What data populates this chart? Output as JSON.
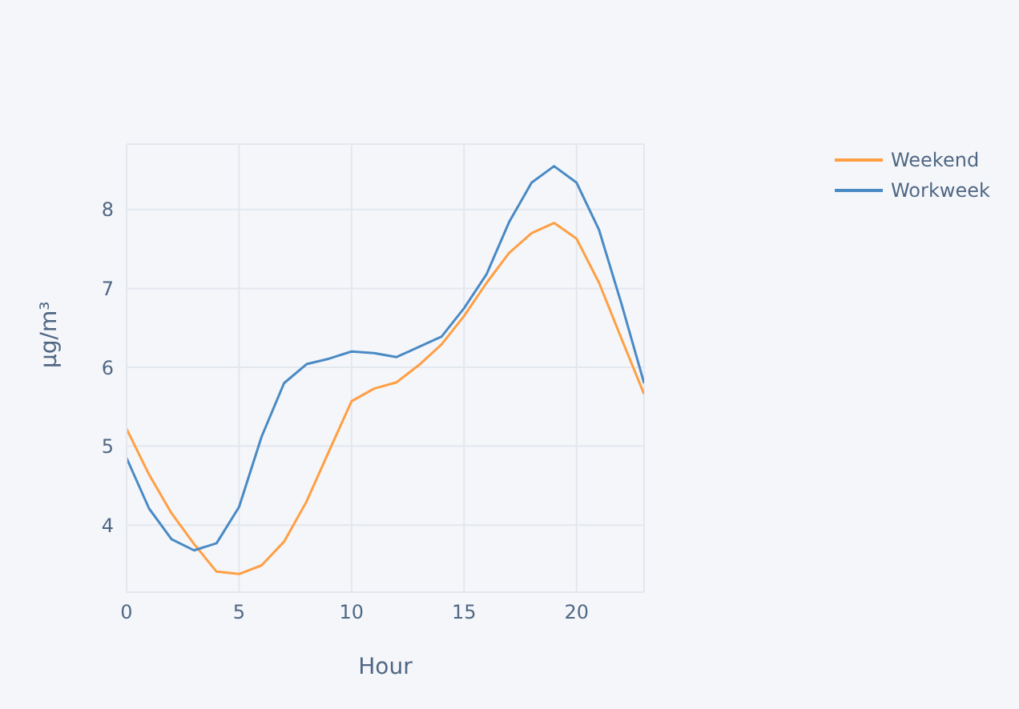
{
  "chart_data": {
    "type": "line",
    "xlabel": "Hour",
    "ylabel": "μg/m³",
    "x": [
      0,
      1,
      2,
      3,
      4,
      5,
      6,
      7,
      8,
      9,
      10,
      11,
      12,
      13,
      14,
      15,
      16,
      17,
      18,
      19,
      20,
      21,
      22,
      23
    ],
    "series": [
      {
        "name": "Weekend",
        "color": "#ff9f43",
        "values": [
          5.22,
          4.64,
          4.15,
          3.76,
          3.41,
          3.38,
          3.49,
          3.79,
          4.3,
          4.94,
          5.57,
          5.73,
          5.81,
          6.03,
          6.29,
          6.65,
          7.07,
          7.45,
          7.7,
          7.83,
          7.63,
          7.07,
          6.36,
          5.66
        ]
      },
      {
        "name": "Workweek",
        "color": "#4a8ac4",
        "values": [
          4.85,
          4.21,
          3.82,
          3.68,
          3.77,
          4.23,
          5.12,
          5.8,
          6.04,
          6.11,
          6.2,
          6.18,
          6.13,
          6.26,
          6.39,
          6.75,
          7.18,
          7.84,
          8.34,
          8.55,
          8.34,
          7.74,
          6.8,
          5.8
        ]
      }
    ],
    "xlim": [
      0,
      23
    ],
    "xticks": [
      0,
      5,
      10,
      15,
      20
    ],
    "ylim": [
      3.15,
      8.83
    ],
    "yticks": [
      4,
      5,
      6,
      7,
      8
    ],
    "grid": true,
    "legend": "top right",
    "marker": "none",
    "line_style": "solid"
  }
}
